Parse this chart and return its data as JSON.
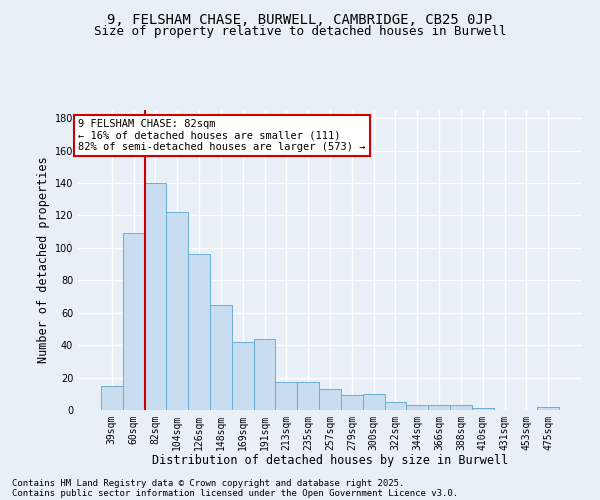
{
  "title1": "9, FELSHAM CHASE, BURWELL, CAMBRIDGE, CB25 0JP",
  "title2": "Size of property relative to detached houses in Burwell",
  "xlabel": "Distribution of detached houses by size in Burwell",
  "ylabel": "Number of detached properties",
  "categories": [
    "39sqm",
    "60sqm",
    "82sqm",
    "104sqm",
    "126sqm",
    "148sqm",
    "169sqm",
    "191sqm",
    "213sqm",
    "235sqm",
    "257sqm",
    "279sqm",
    "300sqm",
    "322sqm",
    "344sqm",
    "366sqm",
    "388sqm",
    "410sqm",
    "431sqm",
    "453sqm",
    "475sqm"
  ],
  "values": [
    15,
    109,
    140,
    122,
    96,
    65,
    42,
    44,
    17,
    17,
    13,
    9,
    10,
    5,
    3,
    3,
    3,
    1,
    0,
    0,
    2
  ],
  "bar_color": "#c9ddf0",
  "bar_edge_color": "#6aaed6",
  "highlight_line_index": 2,
  "highlight_color": "#cc0000",
  "annotation_line1": "9 FELSHAM CHASE: 82sqm",
  "annotation_line2": "← 16% of detached houses are smaller (111)",
  "annotation_line3": "82% of semi-detached houses are larger (573) →",
  "annotation_box_color": "#ffffff",
  "annotation_box_edge": "#cc0000",
  "ylim": [
    0,
    185
  ],
  "yticks": [
    0,
    20,
    40,
    60,
    80,
    100,
    120,
    140,
    160,
    180
  ],
  "footer1": "Contains HM Land Registry data © Crown copyright and database right 2025.",
  "footer2": "Contains public sector information licensed under the Open Government Licence v3.0.",
  "bg_color": "#e8eff7",
  "grid_color": "#ffffff",
  "title_fontsize": 10,
  "subtitle_fontsize": 9,
  "tick_fontsize": 7,
  "label_fontsize": 8.5,
  "footer_fontsize": 6.5,
  "annot_fontsize": 7.5
}
